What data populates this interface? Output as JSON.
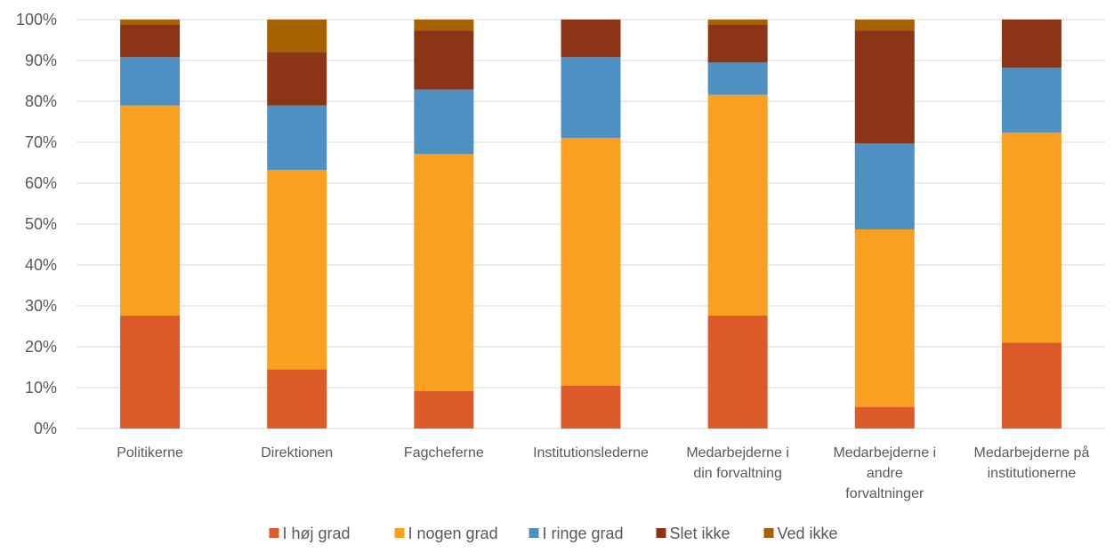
{
  "chart_data": {
    "type": "bar",
    "stacked": true,
    "percent": true,
    "ylim": [
      0,
      100
    ],
    "yticks": [
      "0%",
      "10%",
      "20%",
      "30%",
      "40%",
      "50%",
      "60%",
      "70%",
      "80%",
      "90%",
      "100%"
    ],
    "grid": true,
    "legend_position": "bottom",
    "categories": [
      [
        "Politikerne"
      ],
      [
        "Direktionen"
      ],
      [
        "Fagcheferne"
      ],
      [
        "Institutionslederne"
      ],
      [
        "Medarbejderne i",
        "din forvaltning"
      ],
      [
        "Medarbejderne i",
        "andre",
        "forvaltninger"
      ],
      [
        "Medarbejderne på",
        "institutionerne"
      ]
    ],
    "series": [
      {
        "name": "I høj grad",
        "color": "#DD5B29",
        "values": [
          27.6,
          14.5,
          9.2,
          10.5,
          27.6,
          5.3,
          21.0
        ]
      },
      {
        "name": "I nogen grad",
        "color": "#F7A021",
        "values": [
          51.4,
          48.7,
          57.9,
          60.6,
          54.0,
          43.4,
          51.4
        ]
      },
      {
        "name": "I ringe grad",
        "color": "#4F90C2",
        "values": [
          11.8,
          15.8,
          15.8,
          19.7,
          7.9,
          21.0,
          15.8
        ]
      },
      {
        "name": "Slet ikke",
        "color": "#8B3416",
        "values": [
          7.9,
          13.1,
          14.4,
          9.2,
          9.2,
          27.6,
          11.8
        ]
      },
      {
        "name": "Ved ikke",
        "color": "#A66100",
        "values": [
          1.3,
          7.9,
          2.7,
          0.0,
          1.3,
          2.7,
          0.0
        ]
      }
    ]
  }
}
